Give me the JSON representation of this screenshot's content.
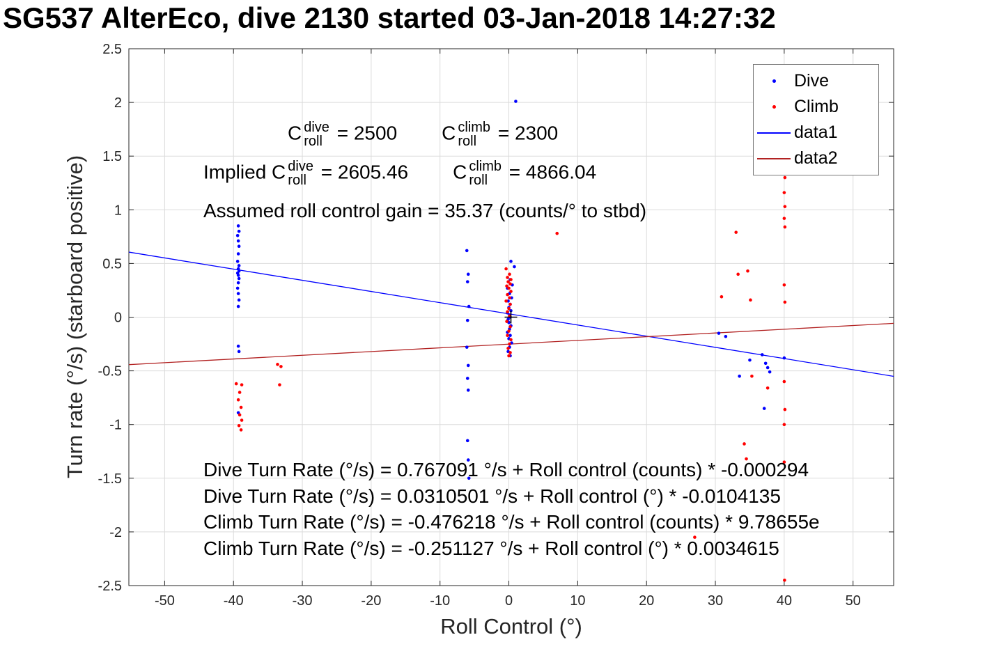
{
  "title": "SG537 AlterEco, dive 2130 started 03-Jan-2018 14:27:32",
  "annotations": {
    "coeff_line1": {
      "a_base": "C",
      "a_sup": "dive",
      "a_sub": "roll",
      "a_eq": " = 2500",
      "b_base": "C",
      "b_sup": "climb",
      "b_sub": "roll",
      "b_eq": " = 2300"
    },
    "coeff_line2": {
      "prefix": "Implied ",
      "a_base": "C",
      "a_sup": "dive",
      "a_sub": "roll",
      "a_eq": " = 2605.46",
      "b_base": "C",
      "b_sup": "climb",
      "b_sub": "roll",
      "b_eq": " = 4866.04"
    },
    "gain_line": "Assumed roll control gain = 35.37 (counts/° to stbd)",
    "fit_equations": [
      "Dive Turn Rate (°/s) = 0.767091 °/s + Roll control (counts) * -0.000294",
      "Dive Turn Rate (°/s) = 0.0310501 °/s + Roll control (°) * -0.0104135",
      "Climb Turn Rate (°/s) = -0.476218 °/s + Roll control (counts) * 9.78655e",
      "Climb Turn Rate (°/s) = -0.251127 °/s + Roll control (°) * 0.0034615"
    ]
  },
  "chart_data": {
    "type": "scatter",
    "title": "SG537 AlterEco, dive 2130 started 03-Jan-2018 14:27:32",
    "xlabel": "Roll Control (°)",
    "ylabel": "Turn rate (°/s) (starboard positive)",
    "xlim": [
      -55.2,
      55.9
    ],
    "ylim": [
      -2.5,
      2.5
    ],
    "x_ticks": [
      -50,
      -40,
      -30,
      -20,
      -10,
      0,
      10,
      20,
      30,
      40,
      50
    ],
    "x_tick_labels": [
      "-50",
      "-40",
      "-30",
      "-20",
      "-10",
      "0",
      "10",
      "20",
      "30",
      "40",
      "50"
    ],
    "y_ticks": [
      -2.5,
      -2,
      -1.5,
      -1,
      -0.5,
      0,
      0.5,
      1,
      1.5,
      2,
      2.5
    ],
    "y_tick_labels": [
      "-2.5",
      "-2",
      "-1.5",
      "-1",
      "-0.5",
      "0",
      "0.5",
      "1",
      "1.5",
      "2",
      "2.5"
    ],
    "grid": true,
    "colors": {
      "dive": "#0000ff",
      "climb": "#ff0000",
      "data1": "#0000ff",
      "data2": "#b22222",
      "axis": "#262626",
      "grid": "#dbdbdb"
    },
    "series": [
      {
        "name": "Dive",
        "type": "scatter",
        "marker": "dot",
        "color": "#0000ff",
        "points": [
          [
            -39.3,
            0.85
          ],
          [
            -39.2,
            0.8
          ],
          [
            -39.4,
            0.76
          ],
          [
            -39.3,
            0.71
          ],
          [
            -39.2,
            0.66
          ],
          [
            -39.3,
            0.59
          ],
          [
            -39.4,
            0.52
          ],
          [
            -39.2,
            0.48
          ],
          [
            -39.3,
            0.45
          ],
          [
            -39.2,
            0.43
          ],
          [
            -39.4,
            0.41
          ],
          [
            -39.3,
            0.39
          ],
          [
            -39.2,
            0.36
          ],
          [
            -39.3,
            0.32
          ],
          [
            -39.4,
            0.27
          ],
          [
            -39.3,
            0.22
          ],
          [
            -39.2,
            0.16
          ],
          [
            -39.3,
            0.1
          ],
          [
            -39.3,
            -0.27
          ],
          [
            -39.2,
            -0.32
          ],
          [
            -39.3,
            -0.89
          ],
          [
            -6.1,
            0.62
          ],
          [
            -5.9,
            0.4
          ],
          [
            -6.0,
            0.33
          ],
          [
            -5.8,
            0.1
          ],
          [
            -6.0,
            -0.03
          ],
          [
            -6.1,
            -0.28
          ],
          [
            -5.9,
            -0.45
          ],
          [
            -6.0,
            -0.57
          ],
          [
            -5.9,
            -0.68
          ],
          [
            -6.0,
            -1.15
          ],
          [
            -5.9,
            -1.33
          ],
          [
            -5.8,
            -1.5
          ],
          [
            1.0,
            2.01
          ],
          [
            0.3,
            0.52
          ],
          [
            0.8,
            0.47
          ],
          [
            0.2,
            0.35
          ],
          [
            0.5,
            0.3
          ],
          [
            -0.2,
            0.27
          ],
          [
            0.1,
            0.22
          ],
          [
            0.4,
            0.18
          ],
          [
            -0.1,
            0.15
          ],
          [
            0.2,
            0.12
          ],
          [
            0.0,
            0.09
          ],
          [
            0.3,
            0.06
          ],
          [
            -0.2,
            0.04
          ],
          [
            0.1,
            0.02
          ],
          [
            0.2,
            0.0
          ],
          [
            -0.1,
            -0.02
          ],
          [
            0.0,
            -0.05
          ],
          [
            0.3,
            -0.08
          ],
          [
            0.1,
            -0.11
          ],
          [
            -0.2,
            -0.14
          ],
          [
            0.2,
            -0.17
          ],
          [
            0.0,
            -0.2
          ],
          [
            0.4,
            -0.24
          ],
          [
            0.1,
            -0.28
          ],
          [
            -0.1,
            -0.32
          ],
          [
            0.2,
            -0.36
          ],
          [
            30.5,
            -0.15
          ],
          [
            31.5,
            -0.18
          ],
          [
            33.5,
            -0.55
          ],
          [
            35.0,
            -0.4
          ],
          [
            36.8,
            -0.35
          ],
          [
            37.3,
            -0.43
          ],
          [
            37.6,
            -0.47
          ],
          [
            37.9,
            -0.51
          ],
          [
            40.0,
            -0.38
          ],
          [
            37.1,
            -0.85
          ]
        ]
      },
      {
        "name": "Climb",
        "type": "scatter",
        "marker": "dot",
        "color": "#ff0000",
        "points": [
          [
            -39.6,
            -0.62
          ],
          [
            -38.8,
            -0.63
          ],
          [
            -39.1,
            -0.7
          ],
          [
            -39.3,
            -0.77
          ],
          [
            -38.9,
            -0.84
          ],
          [
            -39.1,
            -0.91
          ],
          [
            -38.8,
            -0.96
          ],
          [
            -39.2,
            -1.01
          ],
          [
            -38.9,
            -1.05
          ],
          [
            -33.6,
            -0.44
          ],
          [
            -33.1,
            -0.46
          ],
          [
            -33.3,
            -0.63
          ],
          [
            -0.4,
            0.45
          ],
          [
            0.1,
            0.4
          ],
          [
            -0.2,
            0.37
          ],
          [
            0.3,
            0.35
          ],
          [
            -0.1,
            0.33
          ],
          [
            0.2,
            0.31
          ],
          [
            -0.3,
            0.29
          ],
          [
            0.0,
            0.27
          ],
          [
            0.3,
            0.24
          ],
          [
            -0.2,
            0.21
          ],
          [
            0.1,
            0.18
          ],
          [
            -0.4,
            0.15
          ],
          [
            0.2,
            0.12
          ],
          [
            0.0,
            0.08
          ],
          [
            -0.2,
            0.05
          ],
          [
            0.1,
            0.01
          ],
          [
            -0.3,
            -0.04
          ],
          [
            0.2,
            -0.09
          ],
          [
            0.0,
            -0.13
          ],
          [
            -0.2,
            -0.17
          ],
          [
            0.3,
            -0.21
          ],
          [
            0.1,
            -0.25
          ],
          [
            -0.1,
            -0.29
          ],
          [
            0.2,
            -0.33
          ],
          [
            0.0,
            -0.36
          ],
          [
            7.0,
            0.78
          ],
          [
            27.0,
            -2.05
          ],
          [
            30.9,
            0.19
          ],
          [
            33.0,
            0.79
          ],
          [
            33.3,
            0.4
          ],
          [
            34.7,
            0.43
          ],
          [
            35.1,
            0.16
          ],
          [
            34.2,
            -1.18
          ],
          [
            34.5,
            -1.32
          ],
          [
            35.3,
            -0.55
          ],
          [
            37.6,
            -0.66
          ],
          [
            40.1,
            1.3
          ],
          [
            40.0,
            1.16
          ],
          [
            40.1,
            1.03
          ],
          [
            40.0,
            0.92
          ],
          [
            40.1,
            0.84
          ],
          [
            40.0,
            0.3
          ],
          [
            40.1,
            0.14
          ],
          [
            40.0,
            -0.6
          ],
          [
            40.1,
            -0.86
          ],
          [
            40.0,
            -1.0
          ],
          [
            40.0,
            -1.35
          ],
          [
            40.05,
            -2.45
          ]
        ]
      }
    ],
    "fit_lines": [
      {
        "name": "data1",
        "color": "#0000ff",
        "intercept": 0.0310501,
        "slope": -0.0104135
      },
      {
        "name": "data2",
        "color": "#b22222",
        "intercept": -0.251127,
        "slope": 0.0034615
      }
    ],
    "origin_marker": {
      "x": 0.3,
      "y": 0.0,
      "symbol": "+",
      "color": "#000000"
    },
    "legend": {
      "position": "top-right",
      "items": [
        {
          "label": "Dive",
          "marker": "dot",
          "color": "#0000ff"
        },
        {
          "label": "Climb",
          "marker": "dot",
          "color": "#ff0000"
        },
        {
          "label": "data1",
          "marker": "line",
          "color": "#0000ff"
        },
        {
          "label": "data2",
          "marker": "line",
          "color": "#b22222"
        }
      ]
    }
  }
}
